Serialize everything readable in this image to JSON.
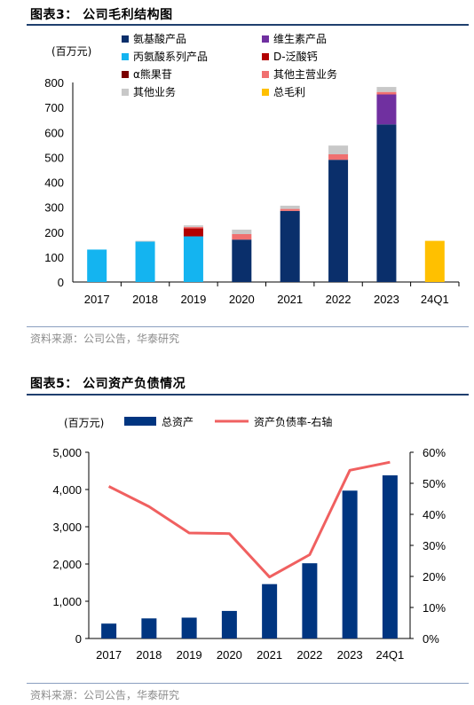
{
  "figure3": {
    "title": "图表3： 公司毛利结构图",
    "source": "资料来源：公司公告，华泰研究"
  },
  "figure5": {
    "title": "图表5： 公司资产负债情况",
    "source": "资料来源：公司公告，华泰研究"
  },
  "chart_data": [
    {
      "type": "bar",
      "stacked": true,
      "title": "",
      "unit_label": "(百万元)",
      "categories": [
        "2017",
        "2018",
        "2019",
        "2020",
        "2021",
        "2022",
        "2023",
        "24Q1"
      ],
      "ylim": [
        0,
        800
      ],
      "yticks": [
        0,
        100,
        200,
        300,
        400,
        500,
        600,
        700,
        800
      ],
      "legend_position": "top",
      "series": [
        {
          "name": "氨基酸产品",
          "color": "#0a2f6b",
          "values": [
            0,
            0,
            0,
            170,
            285,
            490,
            632,
            0
          ]
        },
        {
          "name": "维生素产品",
          "color": "#7030a0",
          "values": [
            0,
            0,
            0,
            0,
            0,
            0,
            120,
            0
          ]
        },
        {
          "name": "丙氨酸系列产品",
          "color": "#14b4f0",
          "values": [
            130,
            162,
            183,
            0,
            0,
            0,
            0,
            0
          ]
        },
        {
          "name": "D-泛酸钙",
          "color": "#b20000",
          "values": [
            0,
            0,
            32,
            0,
            0,
            0,
            0,
            0
          ]
        },
        {
          "name": "α熊果苷",
          "color": "#7b0000",
          "values": [
            0,
            0,
            0,
            0,
            0,
            0,
            0,
            0
          ]
        },
        {
          "name": "其他主营业务",
          "color": "#f07070",
          "values": [
            0,
            0,
            6,
            22,
            8,
            22,
            10,
            0
          ]
        },
        {
          "name": "其他业务",
          "color": "#c8c8c8",
          "values": [
            0,
            3,
            6,
            18,
            13,
            35,
            20,
            0
          ]
        },
        {
          "name": "总毛利",
          "color": "#ffc000",
          "values": [
            0,
            0,
            0,
            0,
            0,
            0,
            0,
            165
          ]
        }
      ]
    },
    {
      "type": "bar+line",
      "title": "",
      "unit_label": "(百万元)",
      "categories": [
        "2017",
        "2018",
        "2019",
        "2020",
        "2021",
        "2022",
        "2023",
        "24Q1"
      ],
      "ylim": [
        0,
        5000
      ],
      "yticks": [
        "0",
        "1,000",
        "2,000",
        "3,000",
        "4,000",
        "5,000"
      ],
      "y2lim": [
        0,
        0.6
      ],
      "y2ticks": [
        "0%",
        "10%",
        "20%",
        "30%",
        "40%",
        "50%",
        "60%"
      ],
      "legend_position": "top",
      "series": [
        {
          "name": "总资产",
          "type": "bar",
          "axis": "left",
          "color": "#003580",
          "values": [
            400,
            540,
            560,
            740,
            1460,
            2020,
            3970,
            4380
          ]
        },
        {
          "name": "资产负债率-右轴",
          "type": "line",
          "axis": "right",
          "color": "#f06060",
          "values": [
            0.49,
            0.425,
            0.34,
            0.338,
            0.198,
            0.27,
            0.542,
            0.568
          ]
        }
      ]
    }
  ]
}
